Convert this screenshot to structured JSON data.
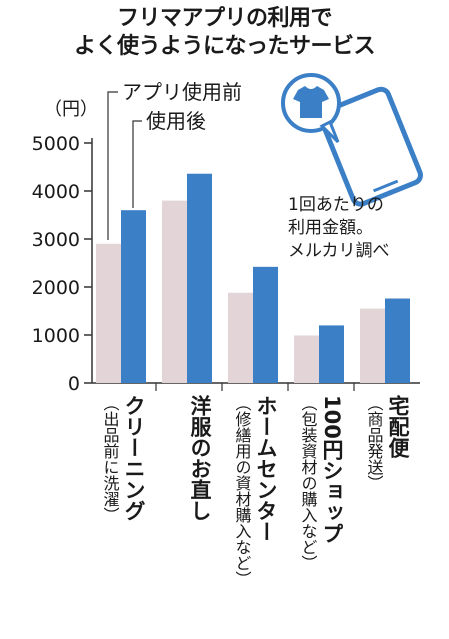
{
  "title_line1": "フリマアプリの利用で",
  "title_line2": "よく使うようになったサービス",
  "unit": "（円）",
  "note_lines": [
    "1回あたりの",
    "利用金額。",
    "メルカリ調べ"
  ],
  "colors": {
    "before": "#e3d4d8",
    "after": "#3b7fc6",
    "axis": "#333333",
    "phone": "#3b7fc6"
  },
  "icon": "smartphone-tshirt-icon",
  "chart_data": {
    "type": "bar",
    "ylim": [
      0,
      5000
    ],
    "yticks": [
      0,
      1000,
      2000,
      3000,
      4000,
      5000
    ],
    "legend": [
      "アプリ使用前",
      "使用後"
    ],
    "categories": [
      {
        "name": "クリーニング",
        "sub": "（出品前に洗濯）"
      },
      {
        "name": "洋服のお直し",
        "sub": ""
      },
      {
        "name": "ホームセンター",
        "sub": "（修繕用の資材購入など）"
      },
      {
        "name": "100円ショップ",
        "sub": "（包装資材の購入など）"
      },
      {
        "name": "宅配便",
        "sub": "（商品発送）"
      }
    ],
    "series": [
      {
        "name": "アプリ使用前",
        "values": [
          2900,
          3800,
          1880,
          990,
          1550
        ]
      },
      {
        "name": "使用後",
        "values": [
          3600,
          4360,
          2420,
          1200,
          1760
        ]
      }
    ]
  }
}
